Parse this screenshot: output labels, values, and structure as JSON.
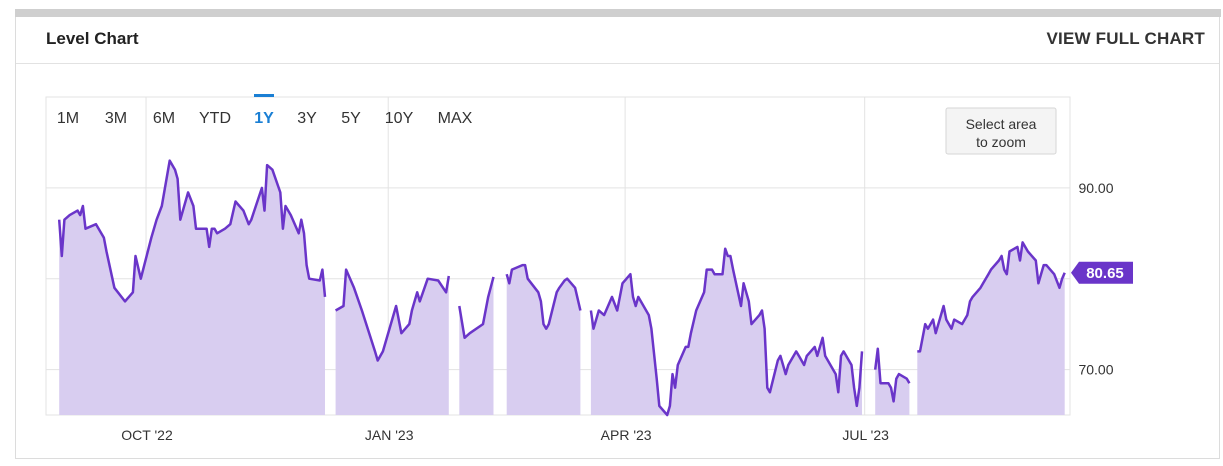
{
  "card": {
    "title": "Level Chart",
    "full_chart_link": "VIEW FULL CHART"
  },
  "range_buttons": [
    {
      "label": "1M",
      "active": false
    },
    {
      "label": "3M",
      "active": false
    },
    {
      "label": "6M",
      "active": false
    },
    {
      "label": "YTD",
      "active": false
    },
    {
      "label": "1Y",
      "active": true
    },
    {
      "label": "3Y",
      "active": false
    },
    {
      "label": "5Y",
      "active": false
    },
    {
      "label": "10Y",
      "active": false
    },
    {
      "label": "MAX",
      "active": false
    }
  ],
  "zoom_hint": [
    "Select area",
    "to zoom"
  ],
  "colors": {
    "line": "#6a35c9",
    "fill": "#d8cdf0",
    "active_range": "#1a7fd4",
    "grid": "#e3e3e3"
  },
  "chart_data": {
    "type": "area",
    "title": "",
    "xlabel": "",
    "ylabel": "",
    "x_tick_labels": [
      "OCT '22",
      "JAN '23",
      "APR '23",
      "JUL '23"
    ],
    "y_tick_labels": [
      "70.00",
      "90.00"
    ],
    "ylim": [
      65,
      100
    ],
    "last_value_label": "80.65",
    "grid": true,
    "segments": [
      [
        [
          "2022-08-29",
          86.5
        ],
        [
          "2022-08-30",
          82.5
        ],
        [
          "2022-08-31",
          86.5
        ],
        [
          "2022-09-02",
          87.0
        ],
        [
          "2022-09-05",
          87.5
        ],
        [
          "2022-09-06",
          87.0
        ],
        [
          "2022-09-07",
          88.0
        ],
        [
          "2022-09-08",
          85.5
        ],
        [
          "2022-09-12",
          86.0
        ],
        [
          "2022-09-15",
          84.5
        ],
        [
          "2022-09-16",
          83.0
        ],
        [
          "2022-09-19",
          79.0
        ],
        [
          "2022-09-23",
          77.5
        ],
        [
          "2022-09-26",
          78.5
        ],
        [
          "2022-09-27",
          82.5
        ],
        [
          "2022-09-29",
          80.0
        ],
        [
          "2022-10-03",
          84.5
        ],
        [
          "2022-10-05",
          86.5
        ],
        [
          "2022-10-07",
          88.0
        ],
        [
          "2022-10-10",
          93.0
        ],
        [
          "2022-10-12",
          92.0
        ],
        [
          "2022-10-13",
          91.0
        ],
        [
          "2022-10-14",
          86.5
        ],
        [
          "2022-10-17",
          89.5
        ],
        [
          "2022-10-19",
          88.0
        ],
        [
          "2022-10-20",
          85.5
        ],
        [
          "2022-10-24",
          85.5
        ],
        [
          "2022-10-25",
          83.5
        ],
        [
          "2022-10-26",
          85.5
        ],
        [
          "2022-10-27",
          85.5
        ],
        [
          "2022-10-28",
          85.0
        ],
        [
          "2022-10-31",
          85.5
        ],
        [
          "2022-11-02",
          86.0
        ],
        [
          "2022-11-04",
          88.5
        ],
        [
          "2022-11-07",
          87.5
        ],
        [
          "2022-11-09",
          86.0
        ],
        [
          "2022-11-10",
          86.5
        ],
        [
          "2022-11-14",
          90.0
        ],
        [
          "2022-11-15",
          87.5
        ],
        [
          "2022-11-16",
          92.5
        ],
        [
          "2022-11-18",
          92.0
        ],
        [
          "2022-11-21",
          89.5
        ],
        [
          "2022-11-22",
          85.5
        ],
        [
          "2022-11-23",
          88.0
        ],
        [
          "2022-11-25",
          87.0
        ],
        [
          "2022-11-28",
          85.0
        ],
        [
          "2022-11-29",
          86.5
        ],
        [
          "2022-11-30",
          85.0
        ],
        [
          "2022-12-01",
          81.5
        ],
        [
          "2022-12-02",
          80.0
        ],
        [
          "2022-12-06",
          79.8
        ],
        [
          "2022-12-07",
          81.0
        ],
        [
          "2022-12-08",
          78.0
        ]
      ],
      [
        [
          "2022-12-12",
          76.5
        ],
        [
          "2022-12-15",
          77.0
        ],
        [
          "2022-12-16",
          81.0
        ],
        [
          "2022-12-19",
          79.0
        ],
        [
          "2022-12-22",
          76.5
        ],
        [
          "2022-12-27",
          72.0
        ],
        [
          "2022-12-28",
          71.0
        ],
        [
          "2022-12-30",
          72.0
        ],
        [
          "2023-01-04",
          77.0
        ],
        [
          "2023-01-06",
          74.0
        ],
        [
          "2023-01-09",
          75.0
        ],
        [
          "2023-01-10",
          76.5
        ],
        [
          "2023-01-12",
          78.5
        ],
        [
          "2023-01-13",
          77.5
        ],
        [
          "2023-01-16",
          80.0
        ],
        [
          "2023-01-20",
          79.8
        ],
        [
          "2023-01-23",
          78.5
        ],
        [
          "2023-01-24",
          80.3
        ]
      ],
      [
        [
          "2023-01-28",
          77.0
        ],
        [
          "2023-01-30",
          73.5
        ],
        [
          "2023-02-01",
          74.0
        ],
        [
          "2023-02-06",
          75.0
        ],
        [
          "2023-02-08",
          78.0
        ],
        [
          "2023-02-10",
          80.2
        ]
      ],
      [
        [
          "2023-02-15",
          80.5
        ],
        [
          "2023-02-16",
          79.5
        ],
        [
          "2023-02-17",
          81.0
        ],
        [
          "2023-02-21",
          81.5
        ],
        [
          "2023-02-22",
          81.5
        ],
        [
          "2023-02-23",
          80.0
        ],
        [
          "2023-02-27",
          78.5
        ],
        [
          "2023-02-28",
          77.5
        ],
        [
          "2023-03-01",
          75.0
        ],
        [
          "2023-03-02",
          74.5
        ],
        [
          "2023-03-03",
          75.0
        ],
        [
          "2023-03-06",
          78.5
        ],
        [
          "2023-03-07",
          79.0
        ],
        [
          "2023-03-09",
          79.8
        ],
        [
          "2023-03-10",
          80.0
        ],
        [
          "2023-03-13",
          79.0
        ],
        [
          "2023-03-15",
          76.5
        ]
      ],
      [
        [
          "2023-03-19",
          76.5
        ],
        [
          "2023-03-20",
          74.5
        ],
        [
          "2023-03-22",
          76.5
        ],
        [
          "2023-03-24",
          76.0
        ],
        [
          "2023-03-27",
          78.0
        ],
        [
          "2023-03-29",
          76.5
        ],
        [
          "2023-03-31",
          79.5
        ],
        [
          "2023-04-03",
          80.5
        ],
        [
          "2023-04-04",
          78.0
        ],
        [
          "2023-04-05",
          77.0
        ],
        [
          "2023-04-06",
          78.0
        ],
        [
          "2023-04-10",
          76.0
        ],
        [
          "2023-04-11",
          74.5
        ],
        [
          "2023-04-13",
          69.0
        ],
        [
          "2023-04-14",
          66.0
        ],
        [
          "2023-04-17",
          65.0
        ],
        [
          "2023-04-18",
          66.0
        ],
        [
          "2023-04-19",
          69.5
        ],
        [
          "2023-04-20",
          68.0
        ],
        [
          "2023-04-21",
          70.5
        ],
        [
          "2023-04-24",
          72.5
        ],
        [
          "2023-04-25",
          72.5
        ],
        [
          "2023-04-26",
          74.0
        ],
        [
          "2023-04-28",
          76.5
        ],
        [
          "2023-05-01",
          78.5
        ],
        [
          "2023-05-02",
          81.0
        ],
        [
          "2023-05-03",
          81.0
        ],
        [
          "2023-05-04",
          81.0
        ],
        [
          "2023-05-05",
          80.5
        ],
        [
          "2023-05-08",
          80.5
        ],
        [
          "2023-05-09",
          83.3
        ],
        [
          "2023-05-10",
          82.5
        ],
        [
          "2023-05-11",
          82.5
        ],
        [
          "2023-05-12",
          81.0
        ],
        [
          "2023-05-15",
          77.0
        ],
        [
          "2023-05-16",
          79.5
        ],
        [
          "2023-05-17",
          78.5
        ],
        [
          "2023-05-18",
          77.5
        ],
        [
          "2023-05-19",
          75.0
        ],
        [
          "2023-05-22",
          76.0
        ],
        [
          "2023-05-23",
          76.5
        ],
        [
          "2023-05-24",
          74.5
        ],
        [
          "2023-05-25",
          68.0
        ],
        [
          "2023-05-26",
          67.5
        ],
        [
          "2023-05-29",
          71.0
        ],
        [
          "2023-05-30",
          71.5
        ],
        [
          "2023-06-01",
          69.5
        ],
        [
          "2023-06-02",
          70.5
        ],
        [
          "2023-06-05",
          72.0
        ],
        [
          "2023-06-06",
          71.5
        ],
        [
          "2023-06-08",
          70.5
        ],
        [
          "2023-06-09",
          71.5
        ],
        [
          "2023-06-12",
          72.5
        ],
        [
          "2023-06-13",
          71.5
        ],
        [
          "2023-06-15",
          73.5
        ],
        [
          "2023-06-16",
          71.5
        ],
        [
          "2023-06-19",
          70.0
        ],
        [
          "2023-06-20",
          69.5
        ],
        [
          "2023-06-21",
          67.5
        ],
        [
          "2023-06-22",
          71.5
        ],
        [
          "2023-06-23",
          72.0
        ],
        [
          "2023-06-26",
          70.5
        ],
        [
          "2023-06-27",
          68.0
        ],
        [
          "2023-06-28",
          66.0
        ],
        [
          "2023-06-29",
          68.0
        ],
        [
          "2023-06-30",
          72.0
        ]
      ],
      [
        [
          "2023-07-05",
          70.0
        ],
        [
          "2023-07-06",
          72.3
        ],
        [
          "2023-07-07",
          68.5
        ],
        [
          "2023-07-10",
          68.5
        ],
        [
          "2023-07-11",
          68.0
        ],
        [
          "2023-07-12",
          66.5
        ],
        [
          "2023-07-13",
          69.0
        ],
        [
          "2023-07-14",
          69.5
        ],
        [
          "2023-07-17",
          69.0
        ],
        [
          "2023-07-18",
          68.5
        ]
      ],
      [
        [
          "2023-07-21",
          72.0
        ],
        [
          "2023-07-22",
          72.0
        ],
        [
          "2023-07-24",
          75.0
        ],
        [
          "2023-07-25",
          74.5
        ],
        [
          "2023-07-27",
          75.5
        ],
        [
          "2023-07-28",
          74.0
        ],
        [
          "2023-07-31",
          77.0
        ],
        [
          "2023-08-01",
          75.5
        ],
        [
          "2023-08-03",
          74.5
        ],
        [
          "2023-08-04",
          75.5
        ],
        [
          "2023-08-07",
          75.0
        ],
        [
          "2023-08-09",
          76.0
        ],
        [
          "2023-08-10",
          77.5
        ],
        [
          "2023-08-11",
          78.0
        ],
        [
          "2023-08-14",
          79.0
        ],
        [
          "2023-08-15",
          79.5
        ],
        [
          "2023-08-17",
          80.5
        ],
        [
          "2023-08-18",
          81.0
        ],
        [
          "2023-08-21",
          82.0
        ],
        [
          "2023-08-22",
          82.5
        ],
        [
          "2023-08-23",
          81.0
        ],
        [
          "2023-08-24",
          80.5
        ],
        [
          "2023-08-25",
          83.0
        ],
        [
          "2023-08-28",
          83.5
        ],
        [
          "2023-08-29",
          82.0
        ],
        [
          "2023-08-30",
          84.0
        ],
        [
          "2023-08-31",
          83.5
        ],
        [
          "2023-09-01",
          83.0
        ],
        [
          "2023-09-04",
          82.0
        ],
        [
          "2023-09-05",
          79.5
        ],
        [
          "2023-09-07",
          81.5
        ],
        [
          "2023-09-08",
          81.5
        ],
        [
          "2023-09-11",
          80.5
        ],
        [
          "2023-09-13",
          79.0
        ],
        [
          "2023-09-14",
          80.0
        ],
        [
          "2023-09-15",
          80.65
        ]
      ]
    ]
  }
}
